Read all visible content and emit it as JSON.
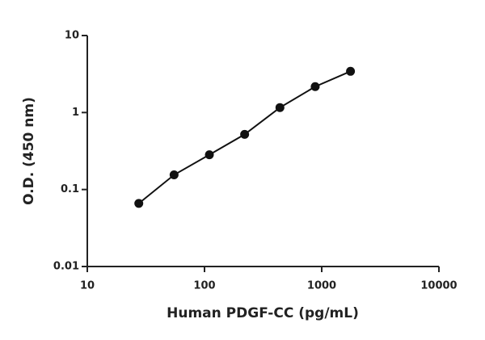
{
  "chart_data": {
    "type": "scatter",
    "line": true,
    "x_label": "Human PDGF-CC (pg/mL)",
    "y_label": "O.D. (450 nm)",
    "x": [
      27.5,
      55,
      110,
      220,
      440,
      880,
      1760
    ],
    "series": [
      {
        "color": "#111111",
        "values": [
          0.066,
          0.155,
          0.283,
          0.52,
          1.16,
          2.17,
          3.43
        ]
      }
    ],
    "xlim": [
      10,
      10000
    ],
    "xticks": [
      10,
      100,
      1000,
      10000
    ],
    "xscale": "log",
    "ylim": [
      0.01,
      10
    ],
    "yticks": [
      0.01,
      0.1,
      1,
      10
    ],
    "yscale": "log"
  }
}
